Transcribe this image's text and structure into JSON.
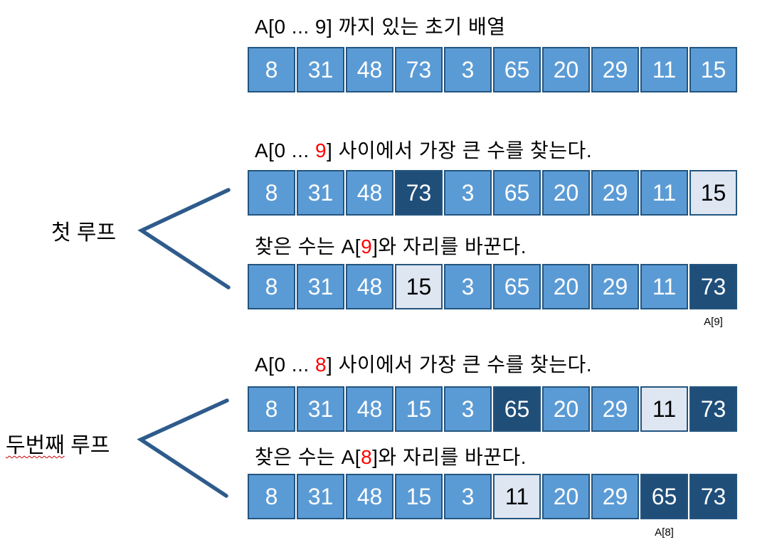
{
  "diagram": {
    "background": "#ffffff",
    "colors": {
      "cell_blue": "#5B9BD5",
      "cell_dark": "#1F4E79",
      "cell_light": "#DEE6F2",
      "cell_border": "#24557F",
      "chevron": "#2E5B8C",
      "highlight_red": "#FF0000",
      "text_dark": "#000000",
      "text_light": "#FFFFFF"
    },
    "side_labels": [
      {
        "underlined": "",
        "rest": "첫 루프"
      },
      {
        "underlined": "두번째",
        "rest": " 루프"
      }
    ]
  },
  "sections": [
    {
      "title": {
        "pre": "A[0 ... 9] 까지 있는 초기 배열",
        "red": "",
        "post": ""
      },
      "cells": [
        {
          "v": "8",
          "style": "blue"
        },
        {
          "v": "31",
          "style": "blue"
        },
        {
          "v": "48",
          "style": "blue"
        },
        {
          "v": "73",
          "style": "blue"
        },
        {
          "v": "3",
          "style": "blue"
        },
        {
          "v": "65",
          "style": "blue"
        },
        {
          "v": "20",
          "style": "blue"
        },
        {
          "v": "29",
          "style": "blue"
        },
        {
          "v": "11",
          "style": "blue"
        },
        {
          "v": "15",
          "style": "blue"
        }
      ],
      "index_label": ""
    },
    {
      "title": {
        "pre": "A[0 ... ",
        "red": "9",
        "post": "] 사이에서 가장 큰 수를 찾는다."
      },
      "cells": [
        {
          "v": "8",
          "style": "blue"
        },
        {
          "v": "31",
          "style": "blue"
        },
        {
          "v": "48",
          "style": "blue"
        },
        {
          "v": "73",
          "style": "dark"
        },
        {
          "v": "3",
          "style": "blue"
        },
        {
          "v": "65",
          "style": "blue"
        },
        {
          "v": "20",
          "style": "blue"
        },
        {
          "v": "29",
          "style": "blue"
        },
        {
          "v": "11",
          "style": "blue"
        },
        {
          "v": "15",
          "style": "light"
        }
      ],
      "index_label": ""
    },
    {
      "title": {
        "pre": "찾은 수는 A[",
        "red": "9",
        "post": "]와 자리를 바꾼다."
      },
      "cells": [
        {
          "v": "8",
          "style": "blue"
        },
        {
          "v": "31",
          "style": "blue"
        },
        {
          "v": "48",
          "style": "blue"
        },
        {
          "v": "15",
          "style": "light"
        },
        {
          "v": "3",
          "style": "blue"
        },
        {
          "v": "65",
          "style": "blue"
        },
        {
          "v": "20",
          "style": "blue"
        },
        {
          "v": "29",
          "style": "blue"
        },
        {
          "v": "11",
          "style": "blue"
        },
        {
          "v": "73",
          "style": "dark"
        }
      ],
      "index_label": "A[9]"
    },
    {
      "title": {
        "pre": "A[0 ... ",
        "red": "8",
        "post": "] 사이에서 가장 큰 수를 찾는다."
      },
      "cells": [
        {
          "v": "8",
          "style": "blue"
        },
        {
          "v": "31",
          "style": "blue"
        },
        {
          "v": "48",
          "style": "blue"
        },
        {
          "v": "15",
          "style": "blue"
        },
        {
          "v": "3",
          "style": "blue"
        },
        {
          "v": "65",
          "style": "dark"
        },
        {
          "v": "20",
          "style": "blue"
        },
        {
          "v": "29",
          "style": "blue"
        },
        {
          "v": "11",
          "style": "light"
        },
        {
          "v": "73",
          "style": "dark"
        }
      ],
      "index_label": ""
    },
    {
      "title": {
        "pre": "찾은 수는 A[",
        "red": "8",
        "post": "]와 자리를 바꾼다."
      },
      "cells": [
        {
          "v": "8",
          "style": "blue"
        },
        {
          "v": "31",
          "style": "blue"
        },
        {
          "v": "48",
          "style": "blue"
        },
        {
          "v": "15",
          "style": "blue"
        },
        {
          "v": "3",
          "style": "blue"
        },
        {
          "v": "11",
          "style": "light"
        },
        {
          "v": "20",
          "style": "blue"
        },
        {
          "v": "29",
          "style": "blue"
        },
        {
          "v": "65",
          "style": "dark"
        },
        {
          "v": "73",
          "style": "dark"
        }
      ],
      "index_label": "A[8]"
    }
  ]
}
